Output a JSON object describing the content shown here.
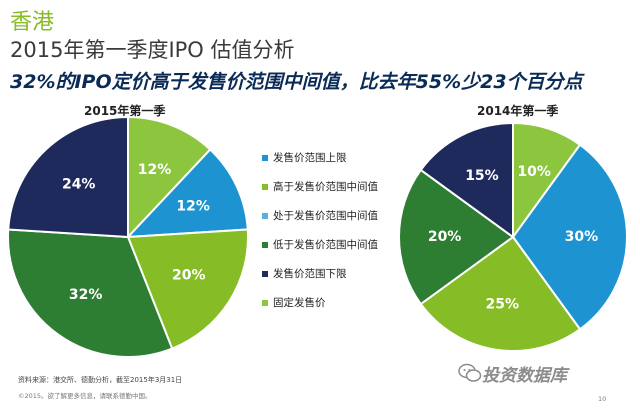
{
  "header": {
    "region": "香港",
    "title": "2015年第一季度IPO 估值分析",
    "subtitle": "32%的IPO定价高于发售价范围中间值，比去年55%少23个百分点"
  },
  "chart_data": [
    {
      "type": "pie",
      "title": "2015年第一季",
      "slices": [
        {
          "category": "固定发售价",
          "value": 12,
          "label": "12%",
          "color": "#8cc63f"
        },
        {
          "category": "发售价范围上限",
          "value": 12,
          "label": "12%",
          "color": "#1d93d2"
        },
        {
          "category": "高于发售价范围中间值",
          "value": 20,
          "label": "20%",
          "color": "#86bc25"
        },
        {
          "category": "低于发售价范围中间值",
          "value": 32,
          "label": "32%",
          "color": "#2d7d32"
        },
        {
          "category": "发售价范围下限",
          "value": 24,
          "label": "24%",
          "color": "#1f2a5c"
        }
      ]
    },
    {
      "type": "pie",
      "title": "2014年第一季",
      "slices": [
        {
          "category": "固定发售价",
          "value": 10,
          "label": "10%",
          "color": "#8cc63f"
        },
        {
          "category": "处于发售价范围中间值",
          "value": 30,
          "label": "30%",
          "color": "#1d93d2"
        },
        {
          "category": "高于发售价范围中间值",
          "value": 25,
          "label": "25%",
          "color": "#86bc25"
        },
        {
          "category": "低于发售价范围中间值",
          "value": 20,
          "label": "20%",
          "color": "#2d7d32"
        },
        {
          "category": "发售价范围下限",
          "value": 15,
          "label": "15%",
          "color": "#1f2a5c"
        }
      ]
    }
  ],
  "legend": [
    {
      "label": "发售价范围上限",
      "color": "#1d93d2"
    },
    {
      "label": "高于发售价范围中间值",
      "color": "#86bc25"
    },
    {
      "label": "处于发售价范围中间值",
      "color": "#5aaee0"
    },
    {
      "label": "低于发售价范围中间值",
      "color": "#2d7d32"
    },
    {
      "label": "发售价范围下限",
      "color": "#1f2a5c"
    },
    {
      "label": "固定发售价",
      "color": "#8cc63f"
    }
  ],
  "footer": {
    "source": "资料来源：港交所、德勤分析，截至2015年3月31日",
    "copyright": "©2015。欲了解更多信息，请联系德勤中国。",
    "page_number": "10",
    "watermark": "投资数据库",
    "watermark_icon": "wechat-icon"
  }
}
